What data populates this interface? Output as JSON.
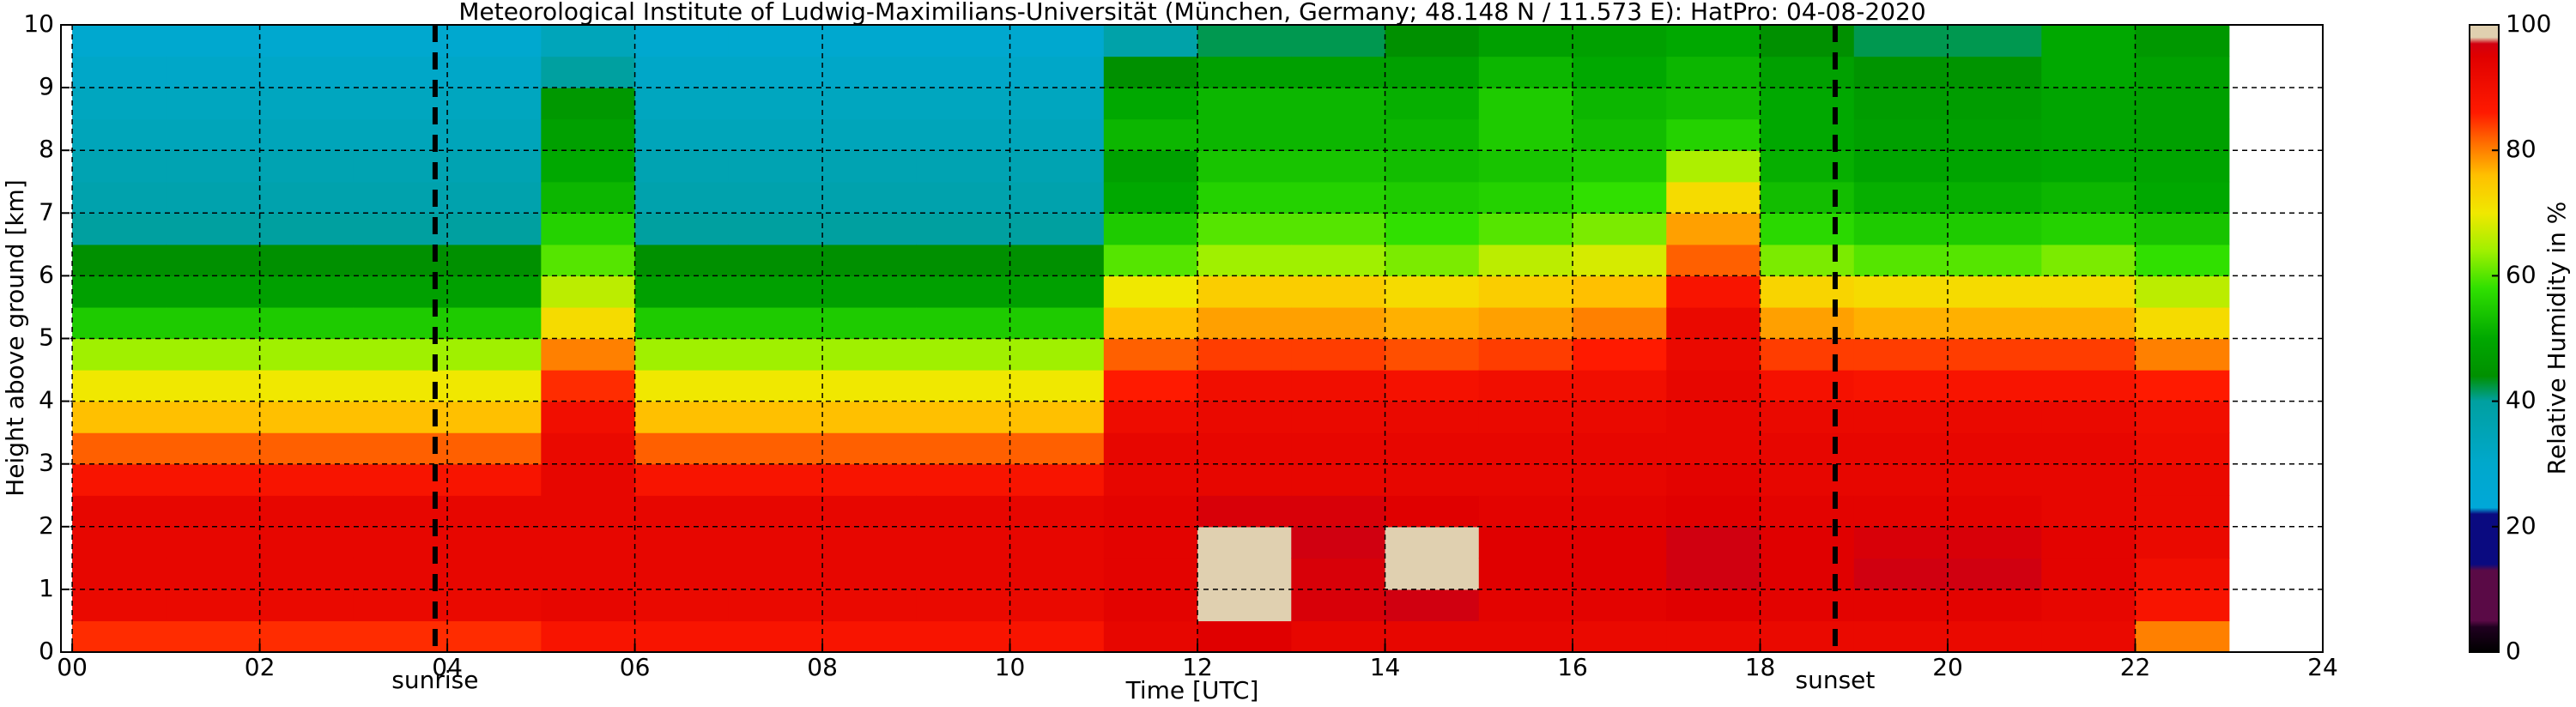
{
  "chart_data": {
    "type": "heatmap",
    "title": "Meteorological Institute of Ludwig-Maximilians-Universität (München, Germany; 48.148 N / 11.573 E):    HatPro: 04-08-2020",
    "x_label": "Time [UTC]",
    "y_label": "Height above ground [km]",
    "x": [
      0,
      1,
      2,
      3,
      4,
      5,
      6,
      7,
      8,
      9,
      10,
      11,
      12,
      13,
      14,
      15,
      16,
      17,
      18,
      19,
      20,
      21,
      22,
      23
    ],
    "y": [
      0,
      0.5,
      1,
      1.5,
      2,
      2.5,
      3,
      3.5,
      4,
      4.5,
      5,
      5.5,
      6,
      6.5,
      7,
      7.5,
      8,
      8.5,
      9,
      9.5,
      10
    ],
    "values": [
      [
        85,
        92,
        93,
        93,
        93,
        88,
        82,
        76,
        70,
        64,
        55,
        48,
        44,
        40,
        37,
        36,
        34,
        33,
        31,
        28
      ],
      [
        85,
        92,
        93,
        93,
        93,
        88,
        82,
        76,
        70,
        64,
        55,
        48,
        44,
        40,
        37,
        36,
        34,
        33,
        31,
        28
      ],
      [
        85,
        92,
        93,
        93,
        93,
        88,
        82,
        76,
        70,
        64,
        55,
        48,
        44,
        40,
        37,
        36,
        34,
        33,
        31,
        28
      ],
      [
        85,
        92,
        93,
        93,
        93,
        88,
        82,
        76,
        70,
        64,
        55,
        48,
        44,
        40,
        37,
        36,
        34,
        33,
        31,
        28
      ],
      [
        85,
        92,
        93,
        93,
        93,
        88,
        82,
        76,
        70,
        64,
        55,
        48,
        44,
        40,
        37,
        36,
        34,
        33,
        31,
        28
      ],
      [
        88,
        93,
        93,
        93,
        93,
        93,
        92,
        90,
        85,
        80,
        72,
        66,
        60,
        56,
        52,
        50,
        48,
        46,
        40,
        34
      ],
      [
        88,
        92,
        93,
        93,
        93,
        88,
        82,
        76,
        70,
        64,
        55,
        48,
        44,
        40,
        37,
        36,
        34,
        33,
        31,
        28
      ],
      [
        88,
        92,
        93,
        93,
        93,
        88,
        82,
        76,
        70,
        64,
        55,
        48,
        44,
        40,
        37,
        36,
        34,
        33,
        31,
        28
      ],
      [
        88,
        92,
        93,
        93,
        93,
        88,
        82,
        76,
        70,
        64,
        55,
        48,
        44,
        40,
        37,
        36,
        34,
        33,
        31,
        28
      ],
      [
        88,
        92,
        93,
        93,
        93,
        88,
        82,
        76,
        70,
        64,
        55,
        48,
        44,
        40,
        37,
        36,
        34,
        33,
        31,
        28
      ],
      [
        88,
        92,
        93,
        93,
        93,
        88,
        82,
        76,
        70,
        64,
        55,
        48,
        44,
        40,
        37,
        36,
        34,
        33,
        31,
        28
      ],
      [
        93,
        94,
        94,
        94,
        94,
        93,
        93,
        91,
        86,
        82,
        76,
        70,
        60,
        55,
        50,
        48,
        52,
        50,
        44,
        38
      ],
      [
        95,
        99,
        99,
        99,
        96,
        93,
        93,
        92,
        90,
        84,
        78,
        74,
        64,
        60,
        56,
        54,
        52,
        52,
        48,
        42
      ],
      [
        93,
        96,
        96,
        97,
        96,
        93,
        93,
        92,
        90,
        84,
        78,
        74,
        64,
        60,
        56,
        54,
        52,
        52,
        48,
        42
      ],
      [
        93,
        97,
        98,
        98,
        95,
        93,
        93,
        92,
        89,
        83,
        77,
        72,
        62,
        58,
        55,
        53,
        52,
        51,
        48,
        44
      ],
      [
        93,
        94,
        95,
        95,
        94,
        93,
        93,
        92,
        90,
        84,
        78,
        74,
        66,
        60,
        56,
        54,
        55,
        55,
        52,
        48
      ],
      [
        92,
        94,
        95,
        95,
        94,
        93,
        93,
        92,
        90,
        86,
        80,
        76,
        68,
        62,
        58,
        55,
        53,
        52,
        50,
        48
      ],
      [
        92,
        95,
        97,
        97,
        95,
        94,
        93,
        93,
        93,
        92,
        92,
        88,
        82,
        78,
        72,
        65,
        56,
        53,
        52,
        50
      ],
      [
        92,
        94,
        95,
        95,
        94,
        93,
        93,
        92,
        89,
        84,
        78,
        73,
        62,
        57,
        53,
        51,
        50,
        50,
        48,
        44
      ],
      [
        92,
        94,
        97,
        96,
        94,
        93,
        93,
        92,
        88,
        84,
        77,
        72,
        60,
        55,
        51,
        49,
        48,
        47,
        45,
        42
      ],
      [
        92,
        94,
        97,
        96,
        94,
        93,
        93,
        92,
        88,
        84,
        77,
        72,
        60,
        55,
        51,
        49,
        48,
        47,
        45,
        42
      ],
      [
        92,
        93,
        94,
        94,
        93,
        93,
        93,
        92,
        88,
        84,
        77,
        72,
        62,
        56,
        52,
        50,
        49,
        49,
        50,
        50
      ],
      [
        80,
        88,
        90,
        92,
        92,
        92,
        91,
        90,
        86,
        80,
        72,
        66,
        58,
        54,
        50,
        49,
        48,
        48,
        48,
        46
      ]
    ],
    "xlim": [
      -0.12,
      24
    ],
    "ylim": [
      0,
      10
    ],
    "xticks": [
      {
        "value": 0,
        "label": "00"
      },
      {
        "value": 2,
        "label": "02"
      },
      {
        "value": 4,
        "label": "04"
      },
      {
        "value": 6,
        "label": "06"
      },
      {
        "value": 8,
        "label": "08"
      },
      10,
      12,
      14,
      16,
      18,
      20,
      22,
      24
    ],
    "yticks": [
      0,
      1,
      2,
      3,
      4,
      5,
      6,
      7,
      8,
      9,
      10
    ],
    "grid": true,
    "annotations": [
      {
        "text": "sunrise",
        "x": 3.87
      },
      {
        "text": "sunset",
        "x": 18.8
      }
    ],
    "colorbar": {
      "label": "Relative Humidity in %",
      "lim": [
        0,
        100
      ],
      "ticks": [
        0,
        20,
        40,
        60,
        80,
        100
      ]
    },
    "colorscale": [
      [
        0,
        "#000000"
      ],
      [
        4,
        "#200020"
      ],
      [
        5,
        "#5a0a46"
      ],
      [
        13,
        "#5a0a46"
      ],
      [
        14,
        "#0a0a80"
      ],
      [
        22,
        "#0a0a80"
      ],
      [
        23,
        "#00a8d8"
      ],
      [
        30,
        "#00a8cc"
      ],
      [
        40,
        "#00a0a0"
      ],
      [
        44,
        "#009000"
      ],
      [
        50,
        "#00a800"
      ],
      [
        58,
        "#30e000"
      ],
      [
        64,
        "#a0f000"
      ],
      [
        70,
        "#f0e800"
      ],
      [
        76,
        "#ffc000"
      ],
      [
        82,
        "#ff6000"
      ],
      [
        86,
        "#ff1a00"
      ],
      [
        95,
        "#e00000"
      ],
      [
        97,
        "#d00010"
      ],
      [
        98,
        "#e0d0b0"
      ],
      [
        100,
        "#e0d0b0"
      ]
    ]
  }
}
